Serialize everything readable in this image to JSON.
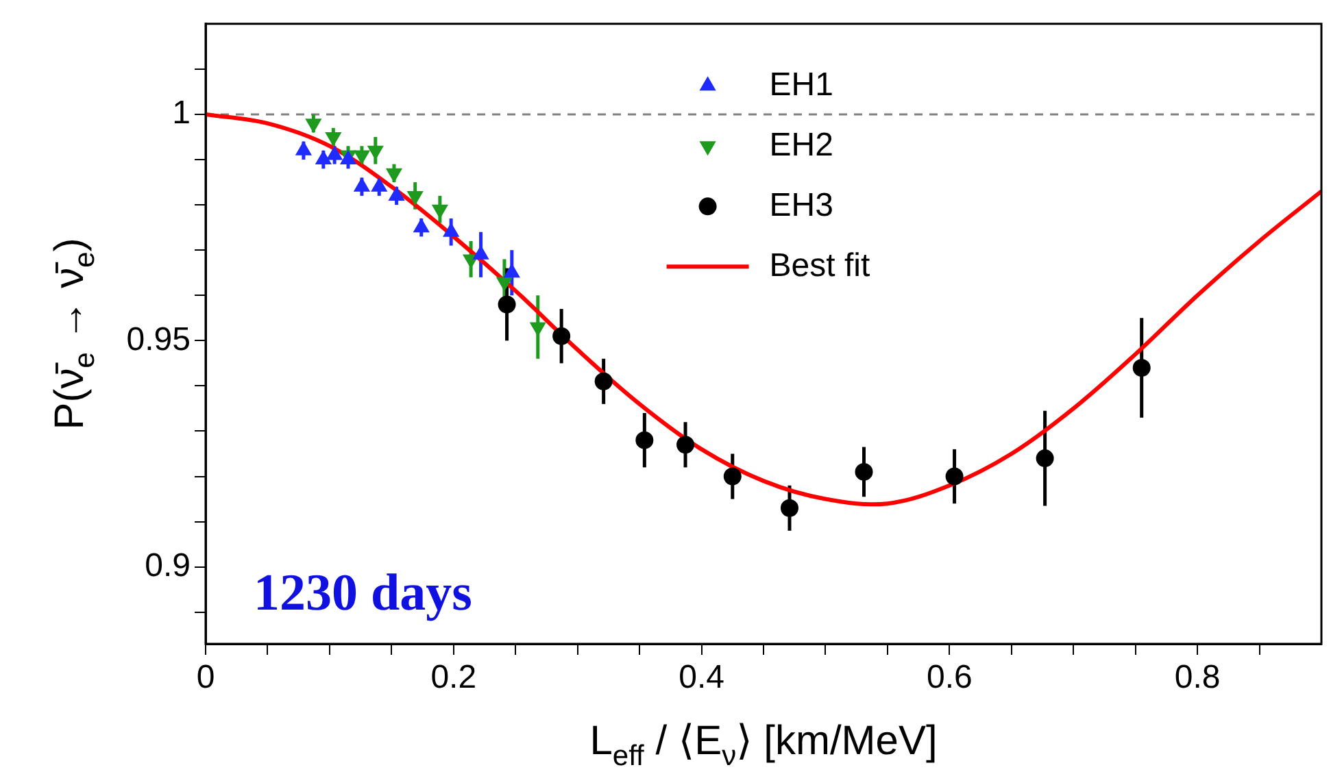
{
  "chart_data": {
    "type": "scatter",
    "xlabel": "L$_{eff}$ / ⟨E$_{ν}$⟩ [km/MeV]",
    "ylabel": "P(ν̄$_{e}$ → ν̄$_{e}$)",
    "annotations": [
      "1230 days"
    ],
    "xlim": [
      0,
      0.9
    ],
    "ylim": [
      0.883,
      1.02
    ],
    "xticks": [
      0,
      {
        "value": 0.05,
        "label": null
      },
      0.2,
      {
        "value": 0.1,
        "label": null
      },
      {
        "value": 0.15,
        "label": null
      },
      {
        "value": 0.25,
        "label": null
      },
      {
        "value": 0.3,
        "label": null
      },
      {
        "value": 0.35,
        "label": null
      },
      0.4,
      {
        "value": 0.45,
        "label": null
      },
      {
        "value": 0.5,
        "label": null
      },
      {
        "value": 0.55,
        "label": null
      },
      0.6,
      {
        "value": 0.65,
        "label": null
      },
      {
        "value": 0.7,
        "label": null
      },
      {
        "value": 0.75,
        "label": null
      },
      0.8,
      {
        "value": 0.85,
        "label": null
      }
    ],
    "yticks": [
      {
        "value": 0.89,
        "label": null
      },
      0.9,
      {
        "value": 0.91,
        "label": null
      },
      {
        "value": 0.92,
        "label": null
      },
      {
        "value": 0.93,
        "label": null
      },
      {
        "value": 0.94,
        "label": null
      },
      0.95,
      {
        "value": 0.96,
        "label": null
      },
      {
        "value": 0.97,
        "label": null
      },
      {
        "value": 0.98,
        "label": null
      },
      {
        "value": 0.99,
        "label": null
      },
      1,
      {
        "value": 1.01,
        "label": null
      }
    ],
    "grid": false,
    "legend": "top",
    "ref_lines": [
      {
        "axis": "y",
        "value": 1,
        "color": "#808080",
        "line_style": "dashed"
      }
    ],
    "series": [
      {
        "name": "EH1",
        "marker": "triangle",
        "color": "#1f2bff",
        "x": [
          0.079,
          0.095,
          0.104,
          0.115,
          0.126,
          0.14,
          0.154,
          0.174,
          0.198,
          0.222,
          0.247
        ],
        "values": [
          0.992,
          0.99,
          0.991,
          0.99,
          0.984,
          0.984,
          0.982,
          0.975,
          0.974,
          0.969,
          0.965
        ],
        "errors": [
          0.002,
          0.002,
          0.002,
          0.002,
          0.002,
          0.002,
          0.002,
          0.002,
          0.003,
          0.005,
          0.005
        ]
      },
      {
        "name": "EH2",
        "marker": "triangle-down",
        "color": "#1e9b1e",
        "x": [
          0.087,
          0.103,
          0.115,
          0.126,
          0.137,
          0.152,
          0.169,
          0.189,
          0.214,
          0.241,
          0.268
        ],
        "values": [
          0.998,
          0.995,
          0.991,
          0.991,
          0.992,
          0.987,
          0.982,
          0.979,
          0.968,
          0.963,
          0.953
        ],
        "errors": [
          0.002,
          0.002,
          0.002,
          0.002,
          0.003,
          0.002,
          0.003,
          0.003,
          0.004,
          0.005,
          0.007
        ]
      },
      {
        "name": "EH3",
        "marker": "circle",
        "color": "#000000",
        "x": [
          0.243,
          0.287,
          0.321,
          0.354,
          0.387,
          0.425,
          0.471,
          0.531,
          0.604,
          0.677,
          0.755
        ],
        "values": [
          0.958,
          0.951,
          0.941,
          0.928,
          0.927,
          0.92,
          0.913,
          0.921,
          0.92,
          0.924,
          0.944
        ],
        "errors": [
          0.008,
          0.006,
          0.005,
          0.006,
          0.005,
          0.005,
          0.005,
          0.0055,
          0.006,
          0.0105,
          0.011
        ]
      },
      {
        "name": "Best fit",
        "type": "line",
        "marker": "none",
        "color": "#ff0000",
        "x": [
          0,
          0.05,
          0.1,
          0.15,
          0.2,
          0.25,
          0.3,
          0.35,
          0.4,
          0.45,
          0.5,
          0.55,
          0.6,
          0.65,
          0.7,
          0.75,
          0.8,
          0.85,
          0.9
        ],
        "values": [
          1,
          0.998,
          0.993,
          0.984,
          0.973,
          0.961,
          0.948,
          0.936,
          0.926,
          0.919,
          0.915,
          0.914,
          0.918,
          0.925,
          0.935,
          0.947,
          0.96,
          0.972,
          0.983
        ]
      }
    ]
  }
}
